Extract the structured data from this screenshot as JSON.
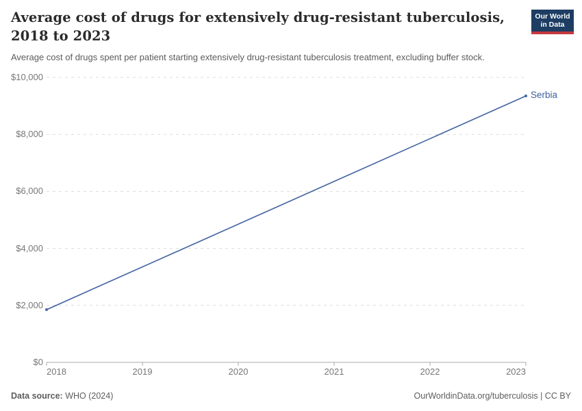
{
  "header": {
    "title_lines": [
      "Average cost of drugs for extensively drug-resistant tuberculosis,",
      "2018 to 2023"
    ],
    "subtitle": "Average cost of drugs spent per patient starting extensively drug-resistant tuberculosis treatment, excluding buffer stock.",
    "logo": {
      "line1": "Our World",
      "line2": "in Data",
      "bg_color": "#1d3d63",
      "accent_color": "#c5383f"
    }
  },
  "chart_data": {
    "type": "line",
    "title": "Average cost of drugs for extensively drug-resistant tuberculosis, 2018 to 2023",
    "xlabel": "",
    "ylabel": "",
    "xlim": [
      2018,
      2023
    ],
    "ylim": [
      0,
      10000
    ],
    "grid": "horizontal-dashed",
    "legend_position": "end-of-line-label",
    "end_label": "Serbia",
    "xticks": [
      {
        "value": 2018,
        "label": "2018"
      },
      {
        "value": 2019,
        "label": "2019"
      },
      {
        "value": 2020,
        "label": "2020"
      },
      {
        "value": 2021,
        "label": "2021"
      },
      {
        "value": 2022,
        "label": "2022"
      },
      {
        "value": 2023,
        "label": "2023"
      }
    ],
    "yticks": [
      {
        "value": 0,
        "label": "$0"
      },
      {
        "value": 2000,
        "label": "$2,000"
      },
      {
        "value": 4000,
        "label": "$4,000"
      },
      {
        "value": 6000,
        "label": "$6,000"
      },
      {
        "value": 8000,
        "label": "$8,000"
      },
      {
        "value": 10000,
        "label": "$10,000"
      }
    ],
    "series": [
      {
        "name": "Serbia",
        "color": "#4a69a5",
        "x": [
          2018,
          2023
        ],
        "y": [
          1850,
          9350
        ]
      }
    ],
    "colors": {
      "gridline": "#dcdcdc",
      "axis": "#a9a9a9",
      "tick_label": "#767676"
    }
  },
  "footer": {
    "datasource_label": "Data source:",
    "datasource_value": "WHO (2024)",
    "right_text": "OurWorldinData.org/tuberculosis | CC BY"
  }
}
